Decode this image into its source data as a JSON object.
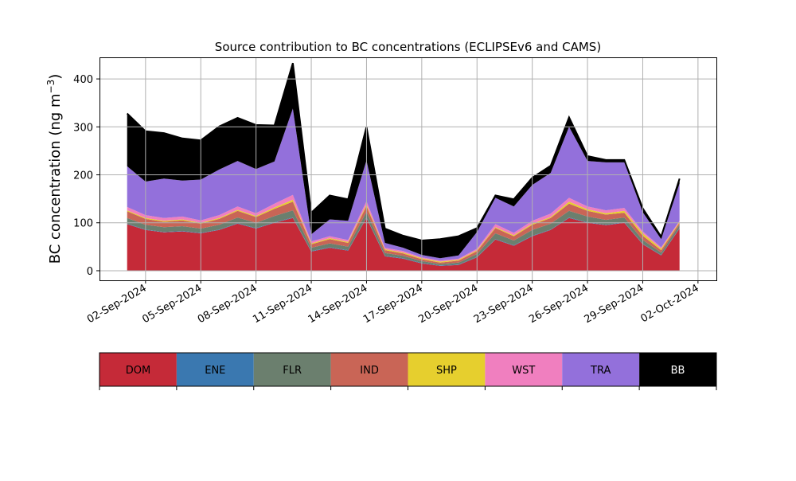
{
  "chart_data": {
    "type": "area",
    "stacked": true,
    "title": "Source contribution to BC concentrations (ECLIPSEv6 and CAMS)",
    "xlabel": "",
    "ylabel": "BC concentration (ng m",
    "ylabel_superscript": "−3",
    "ylabel_close": ")",
    "x_range": [
      "2024-08-30T12:00",
      "2024-10-03T00:00"
    ],
    "ylim": [
      -20,
      445
    ],
    "y_ticks": [
      0,
      100,
      200,
      300,
      400
    ],
    "x_ticks": [
      {
        "date": "2024-09-02",
        "label": "02-Sep-2024"
      },
      {
        "date": "2024-09-05",
        "label": "05-Sep-2024"
      },
      {
        "date": "2024-09-08",
        "label": "08-Sep-2024"
      },
      {
        "date": "2024-09-11",
        "label": "11-Sep-2024"
      },
      {
        "date": "2024-09-14",
        "label": "14-Sep-2024"
      },
      {
        "date": "2024-09-17",
        "label": "17-Sep-2024"
      },
      {
        "date": "2024-09-20",
        "label": "20-Sep-2024"
      },
      {
        "date": "2024-09-23",
        "label": "23-Sep-2024"
      },
      {
        "date": "2024-09-26",
        "label": "26-Sep-2024"
      },
      {
        "date": "2024-09-29",
        "label": "29-Sep-2024"
      },
      {
        "date": "2024-10-02",
        "label": "02-Oct-2024"
      }
    ],
    "grid": true,
    "legend_position": "bottom-colorbar",
    "x": [
      "2024-09-01",
      "2024-09-02",
      "2024-09-03",
      "2024-09-04",
      "2024-09-05",
      "2024-09-06",
      "2024-09-07",
      "2024-09-08",
      "2024-09-09",
      "2024-09-10",
      "2024-09-11",
      "2024-09-12",
      "2024-09-13",
      "2024-09-14",
      "2024-09-15",
      "2024-09-16",
      "2024-09-17",
      "2024-09-18",
      "2024-09-19",
      "2024-09-20",
      "2024-09-21",
      "2024-09-22",
      "2024-09-23",
      "2024-09-24",
      "2024-09-25",
      "2024-09-26",
      "2024-09-27",
      "2024-09-28",
      "2024-09-29",
      "2024-09-30",
      "2024-10-01"
    ],
    "series": [
      {
        "name": "DOM",
        "color": "#c52a38",
        "values": [
          97,
          85,
          80,
          82,
          78,
          85,
          98,
          88,
          100,
          110,
          40,
          48,
          42,
          110,
          30,
          25,
          15,
          10,
          12,
          28,
          65,
          52,
          72,
          85,
          110,
          100,
          95,
          100,
          55,
          32,
          88
        ]
      },
      {
        "name": "ENE",
        "color": "#3a78b0",
        "values": [
          1,
          1,
          1,
          1,
          1,
          1,
          1,
          1,
          1,
          1,
          1,
          1,
          1,
          1,
          1,
          1,
          1,
          1,
          1,
          1,
          1,
          1,
          1,
          1,
          1,
          1,
          1,
          1,
          1,
          1,
          1
        ]
      },
      {
        "name": "FLR",
        "color": "#6b7f6e",
        "values": [
          12,
          10,
          10,
          10,
          9,
          10,
          12,
          11,
          13,
          15,
          7,
          8,
          7,
          12,
          6,
          5,
          4,
          3,
          4,
          6,
          12,
          10,
          12,
          12,
          14,
          12,
          10,
          10,
          8,
          5,
          7
        ]
      },
      {
        "name": "IND",
        "color": "#c96556",
        "values": [
          14,
          12,
          11,
          12,
          10,
          12,
          14,
          12,
          15,
          18,
          7,
          9,
          8,
          12,
          6,
          5,
          4,
          3,
          4,
          6,
          11,
          9,
          11,
          12,
          15,
          12,
          11,
          10,
          9,
          5,
          4
        ]
      },
      {
        "name": "SHP",
        "color": "#e6cf2e",
        "values": [
          2,
          2,
          2,
          2,
          2,
          2,
          2,
          2,
          3,
          4,
          2,
          2,
          2,
          3,
          2,
          2,
          2,
          2,
          2,
          2,
          2,
          2,
          2,
          2,
          4,
          3,
          3,
          4,
          5,
          3,
          2
        ]
      },
      {
        "name": "WST",
        "color": "#f07fbf",
        "values": [
          7,
          6,
          6,
          6,
          5,
          6,
          7,
          6,
          8,
          10,
          4,
          4,
          4,
          7,
          3,
          3,
          2,
          2,
          2,
          3,
          6,
          5,
          6,
          7,
          8,
          6,
          6,
          6,
          4,
          3,
          2
        ]
      },
      {
        "name": "TRA",
        "color": "#9370db",
        "values": [
          85,
          70,
          82,
          75,
          85,
          95,
          95,
          92,
          88,
          180,
          15,
          35,
          40,
          85,
          10,
          7,
          5,
          5,
          7,
          35,
          55,
          55,
          75,
          85,
          148,
          95,
          100,
          95,
          40,
          17,
          78
        ]
      },
      {
        "name": "BB",
        "color": "#000000",
        "values": [
          110,
          105,
          95,
          88,
          82,
          90,
          90,
          92,
          75,
          95,
          45,
          50,
          45,
          70,
          30,
          25,
          30,
          40,
          40,
          8,
          5,
          15,
          15,
          15,
          20,
          10,
          5,
          5,
          8,
          5,
          10
        ]
      }
    ]
  }
}
